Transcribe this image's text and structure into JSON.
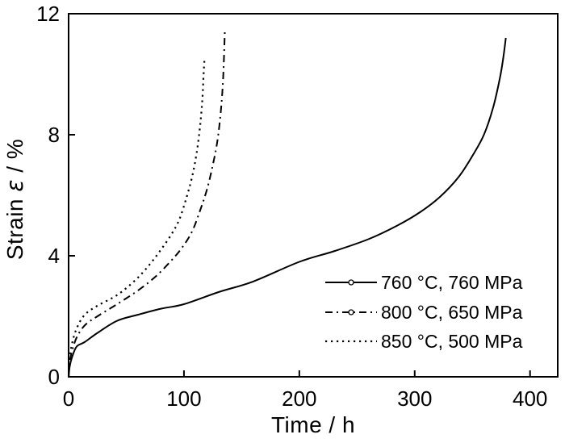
{
  "figure": {
    "background": "#ffffff",
    "ink_color": "#000000"
  },
  "chart_data": {
    "type": "line",
    "title": "",
    "xlabel": "Time / h",
    "ylabel": "Strain ε / %",
    "ylabel_parts": {
      "pre": "Strain ",
      "symbol": "ε",
      "post": " / %"
    },
    "xlim": [
      0,
      424
    ],
    "ylim": [
      0,
      12
    ],
    "x_ticks": [
      0,
      100,
      200,
      300,
      400
    ],
    "y_ticks": [
      0,
      4,
      8,
      12
    ],
    "grid": false,
    "legend_position": "inside-lower-right",
    "series": [
      {
        "name": "760 °C, 760 MPa",
        "line_style": "solid",
        "legend_marker": "open-circle",
        "color": "#000000",
        "x": [
          0,
          1,
          3,
          7,
          14,
          25,
          42,
          60,
          80,
          100,
          130,
          160,
          200,
          230,
          260,
          285,
          305,
          322,
          338,
          350,
          360,
          368,
          374,
          377,
          379
        ],
        "y": [
          0,
          0.35,
          0.65,
          1.0,
          1.15,
          1.45,
          1.85,
          2.05,
          2.25,
          2.4,
          2.8,
          3.15,
          3.8,
          4.15,
          4.55,
          5.0,
          5.45,
          5.95,
          6.6,
          7.3,
          8.0,
          8.9,
          9.9,
          10.6,
          11.2
        ]
      },
      {
        "name": "800 °C, 650 MPa",
        "line_style": "dash-dot",
        "legend_marker": "open-circle",
        "color": "#000000",
        "x": [
          0,
          1,
          3,
          7,
          14,
          25,
          42,
          60,
          75,
          88,
          98,
          107,
          114,
          120,
          125,
          129,
          132,
          134,
          135.5
        ],
        "y": [
          0,
          0.5,
          0.85,
          1.3,
          1.7,
          2.0,
          2.4,
          2.85,
          3.3,
          3.8,
          4.25,
          4.8,
          5.5,
          6.2,
          7.0,
          7.8,
          8.8,
          9.9,
          11.5
        ]
      },
      {
        "name": "850 °C, 500 MPa",
        "line_style": "dotted",
        "legend_marker": "none",
        "color": "#000000",
        "x": [
          0,
          1,
          3,
          7,
          14,
          25,
          42,
          58,
          70,
          80,
          89,
          96,
          102,
          107,
          111,
          114,
          116,
          117,
          117.8
        ],
        "y": [
          0,
          0.6,
          1.1,
          1.6,
          2.05,
          2.35,
          2.7,
          3.2,
          3.7,
          4.2,
          4.7,
          5.2,
          5.9,
          6.6,
          7.4,
          8.3,
          9.2,
          10.0,
          10.5
        ]
      }
    ]
  }
}
